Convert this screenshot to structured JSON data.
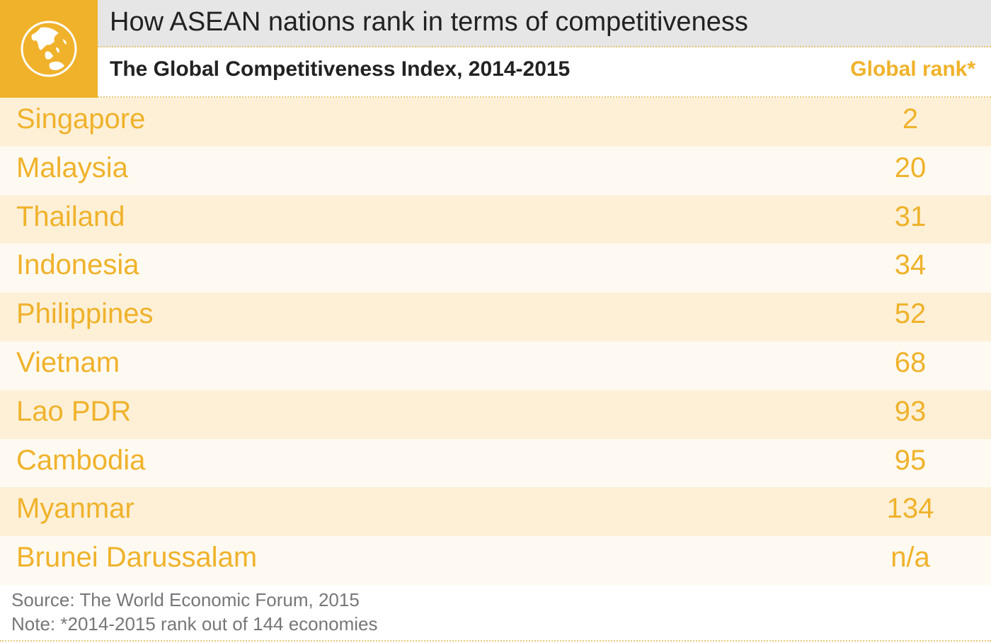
{
  "header": {
    "title": "How ASEAN nations rank in terms of competitiveness",
    "subtitle": "The Global Competitiveness Index, 2014-2015",
    "column_header": "Global rank*",
    "icon": "globe-icon"
  },
  "chart_data": {
    "type": "table",
    "title": "How ASEAN nations rank in terms of competitiveness",
    "subtitle": "The Global Competitiveness Index, 2014-2015",
    "columns": [
      "",
      "Global rank*"
    ],
    "rows": [
      {
        "country": "Singapore",
        "rank": "2"
      },
      {
        "country": "Malaysia",
        "rank": "20"
      },
      {
        "country": "Thailand",
        "rank": "31"
      },
      {
        "country": "Indonesia",
        "rank": "34"
      },
      {
        "country": "Philippines",
        "rank": "52"
      },
      {
        "country": "Vietnam",
        "rank": "68"
      },
      {
        "country": "Lao PDR",
        "rank": "93"
      },
      {
        "country": "Cambodia",
        "rank": "95"
      },
      {
        "country": "Myanmar",
        "rank": "134"
      },
      {
        "country": "Brunei Darussalam",
        "rank": "n/a"
      }
    ]
  },
  "footer": {
    "source": "Source: The World Economic Forum, 2015",
    "note": "Note: *2014-2015 rank out of 144 economies"
  },
  "colors": {
    "accent": "#f0b22b",
    "row_odd": "#fdf0d7",
    "row_even": "#fffaf1",
    "title_bar": "#e6e6e6"
  }
}
